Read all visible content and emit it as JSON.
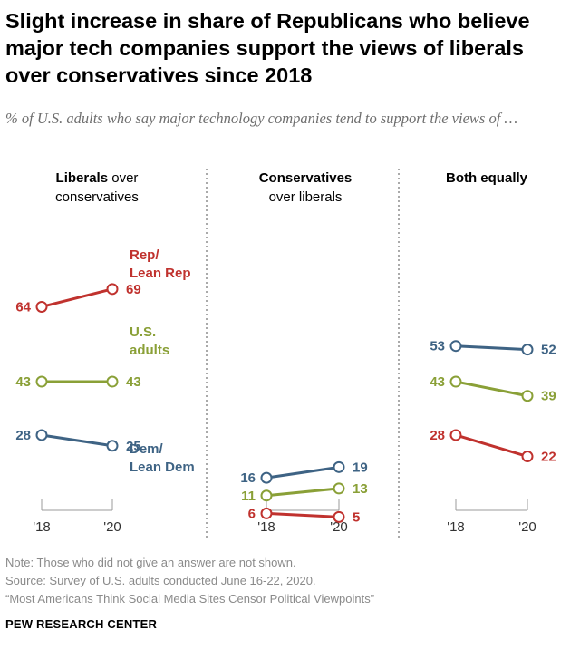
{
  "title": "Slight increase in share of Republicans who believe major tech companies support the views of liberals over conservatives since 2018",
  "subtitle": "% of U.S. adults who say major technology companies tend to support the views of …",
  "colors": {
    "rep": "#c0322e",
    "us": "#8aa037",
    "dem": "#3e6384",
    "axis": "#9b9b9b",
    "divider": "#555555"
  },
  "panels": [
    {
      "head_bold": "Liberals",
      "head_rest": " over",
      "head_line2": "conservatives"
    },
    {
      "head_bold": "Conservatives",
      "head_rest": "",
      "head_line2": "over liberals"
    },
    {
      "head_bold": "Both equally",
      "head_rest": "",
      "head_line2": ""
    }
  ],
  "series_labels": {
    "rep": [
      "Rep/",
      "Lean Rep"
    ],
    "us": [
      "U.S.",
      "adults"
    ],
    "dem": [
      "Dem/",
      "Lean Dem"
    ]
  },
  "chart_data": {
    "type": "line",
    "categories": [
      "'18",
      "'20"
    ],
    "panels": [
      {
        "name": "Liberals over conservatives",
        "series": [
          {
            "name": "Rep/Lean Rep",
            "key": "rep",
            "values": [
              64,
              69
            ]
          },
          {
            "name": "U.S. adults",
            "key": "us",
            "values": [
              43,
              43
            ]
          },
          {
            "name": "Dem/Lean Dem",
            "key": "dem",
            "values": [
              28,
              25
            ]
          }
        ]
      },
      {
        "name": "Conservatives over liberals",
        "series": [
          {
            "name": "Dem/Lean Dem",
            "key": "dem",
            "values": [
              16,
              19
            ]
          },
          {
            "name": "U.S. adults",
            "key": "us",
            "values": [
              11,
              13
            ]
          },
          {
            "name": "Rep/Lean Rep",
            "key": "rep",
            "values": [
              6,
              5
            ]
          }
        ]
      },
      {
        "name": "Both equally",
        "series": [
          {
            "name": "Dem/Lean Dem",
            "key": "dem",
            "values": [
              53,
              52
            ]
          },
          {
            "name": "U.S. adults",
            "key": "us",
            "values": [
              43,
              39
            ]
          },
          {
            "name": "Rep/Lean Rep",
            "key": "rep",
            "values": [
              28,
              22
            ]
          }
        ]
      }
    ]
  },
  "notes": [
    "Note: Those who did not give an answer are not shown.",
    "Source: Survey of U.S. adults conducted June 16-22, 2020.",
    "“Most Americans Think Social Media Sites Censor Political Viewpoints”"
  ],
  "brand": "PEW RESEARCH CENTER"
}
